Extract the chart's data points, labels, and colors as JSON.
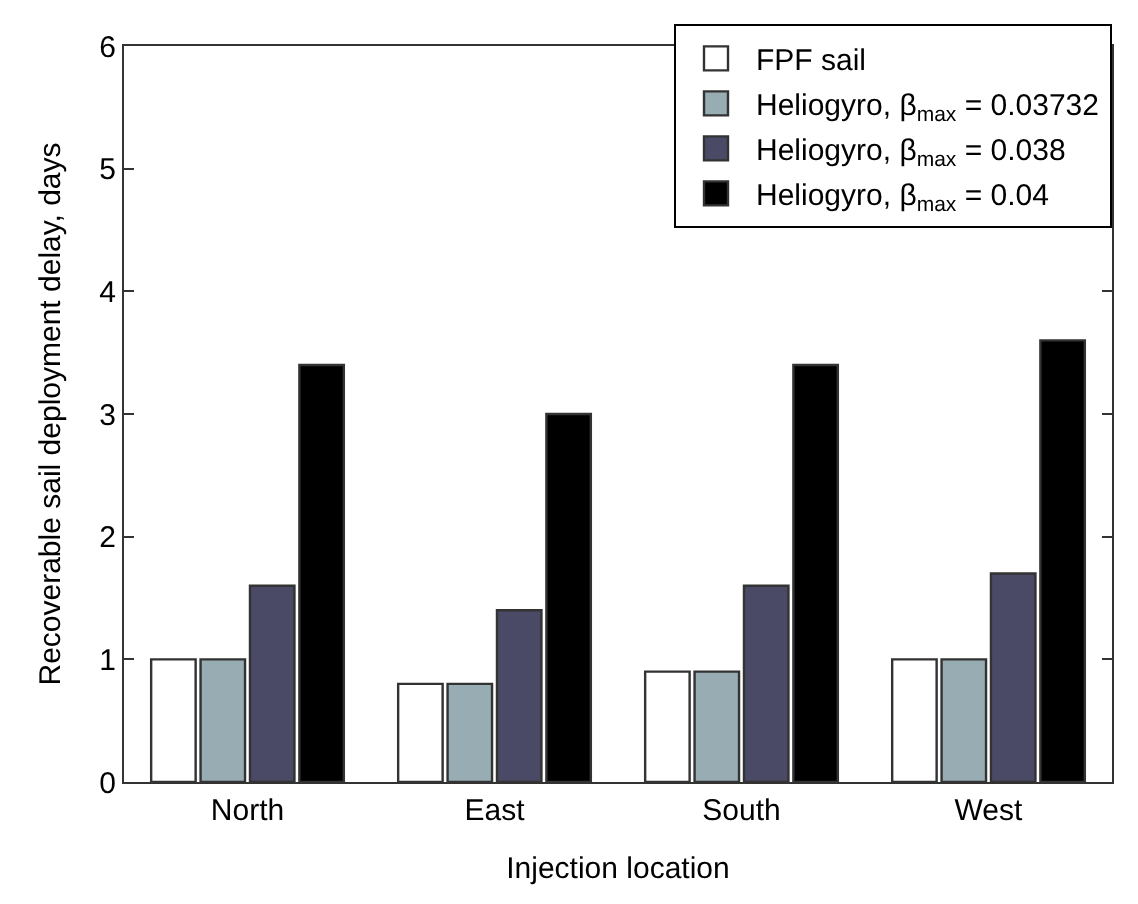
{
  "chart_data": {
    "type": "bar",
    "xlabel": "Injection location",
    "ylabel": "Recoverable sail deployment delay, days",
    "categories": [
      "North",
      "East",
      "South",
      "West"
    ],
    "series": [
      {
        "name": "FPF sail",
        "color": "#ffffff",
        "values": [
          1,
          0.8,
          0.9,
          1
        ]
      },
      {
        "name": "Heliogyro, β$_{max}$ = 0.03732",
        "color": "#97adb3",
        "values": [
          1,
          0.8,
          0.9,
          1
        ]
      },
      {
        "name": "Heliogyro, β$_{max}$ = 0.038",
        "color": "#4a4a66",
        "values": [
          1.6,
          1.4,
          1.6,
          1.7
        ]
      },
      {
        "name": "Heliogyro, β$_{max}$ = 0.04",
        "color": "#000000",
        "values": [
          3.4,
          3.0,
          3.4,
          3.6
        ]
      }
    ],
    "ylim": [
      0,
      6
    ],
    "yticks": [
      0,
      1,
      2,
      3,
      4,
      5,
      6
    ],
    "legend": "top right"
  }
}
